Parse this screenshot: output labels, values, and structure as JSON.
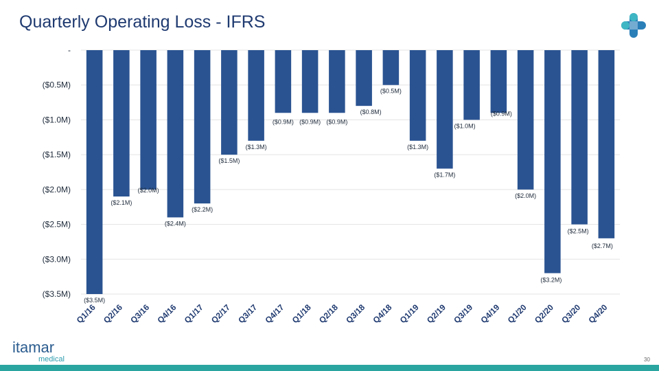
{
  "title": "Quarterly Operating Loss - IFRS",
  "page_number": "30",
  "brand": {
    "name": "itamar",
    "sub": "medical"
  },
  "colors": {
    "bar": "#2a5391",
    "title": "#1f3a70",
    "accent": "#2aa5a0"
  },
  "chart_data": {
    "type": "bar",
    "title": "Quarterly Operating Loss - IFRS",
    "xlabel": "",
    "ylabel": "",
    "ylim": [
      -3.5,
      0
    ],
    "grid": true,
    "y_ticks": [
      {
        "value": 0,
        "label": "-"
      },
      {
        "value": -0.5,
        "label": "($0.5M)"
      },
      {
        "value": -1.0,
        "label": "($1.0M)"
      },
      {
        "value": -1.5,
        "label": "($1.5M)"
      },
      {
        "value": -2.0,
        "label": "($2.0M)"
      },
      {
        "value": -2.5,
        "label": "($2.5M)"
      },
      {
        "value": -3.0,
        "label": "($3.0M)"
      },
      {
        "value": -3.5,
        "label": "($3.5M)"
      }
    ],
    "categories": [
      "Q1/16",
      "Q2/16",
      "Q3/16",
      "Q4/16",
      "Q1/17",
      "Q2/17",
      "Q3/17",
      "Q4/17",
      "Q1/18",
      "Q2/18",
      "Q3/18",
      "Q4/18",
      "Q1/19",
      "Q2/19",
      "Q3/19",
      "Q4/19",
      "Q1/20",
      "Q2/20",
      "Q3/20",
      "Q4/20"
    ],
    "values": [
      -3.5,
      -2.1,
      -2.0,
      -2.4,
      -2.2,
      -1.5,
      -1.3,
      -0.9,
      -0.9,
      -0.9,
      -0.8,
      -0.5,
      -1.3,
      -1.7,
      -1.0,
      -0.9,
      -2.0,
      -3.2,
      -2.5,
      -2.7
    ],
    "data_labels": [
      "($3.5M)",
      "($2.1M)",
      "($2.0M)",
      "($2.4M)",
      "($2.2M)",
      "($1.5M)",
      "($1.3M)",
      "($0.9M)",
      "($0.9M)",
      "($0.9M)",
      "($0.8M)",
      "($0.5M)",
      "($1.3M)",
      "($1.7M)",
      "($1.0M)",
      "($0.9M)",
      "($2.0M)",
      "($3.2M)",
      "($2.5M)",
      "($2.7M)"
    ]
  }
}
